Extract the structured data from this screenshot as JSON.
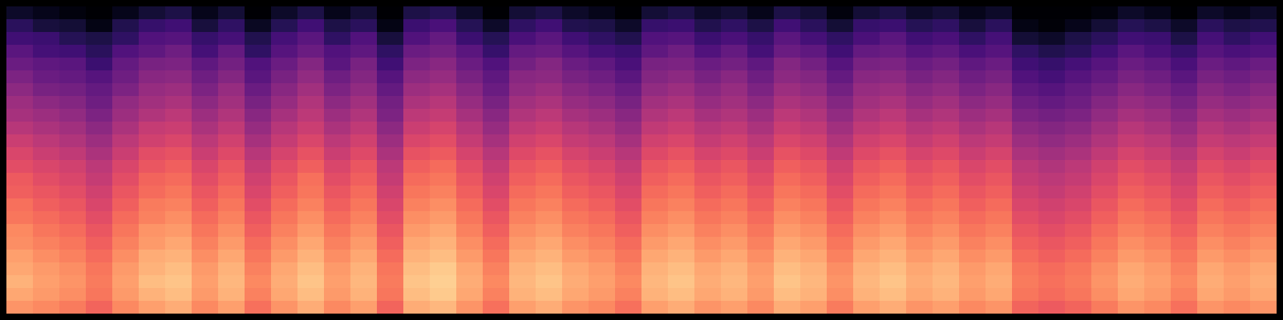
{
  "chart_data": {
    "type": "heatmap",
    "color": "magma",
    "tick_labels": false,
    "zlim": [
      -80,
      0
    ],
    "cells": [
      [
        -74,
        -76,
        -78,
        -80,
        -76,
        -72,
        -70,
        -76,
        -72,
        -80,
        -74,
        -70,
        -76,
        -72,
        -80,
        -70,
        -68,
        -74,
        -80,
        -72,
        -70,
        -74,
        -76,
        -80,
        -72,
        -70,
        -74,
        -72,
        -76,
        -70,
        -72,
        -78,
        -72,
        -70,
        -74,
        -72,
        -76,
        -74,
        -80,
        -80,
        -80,
        -78,
        -74,
        -76,
        -80,
        -74,
        -76,
        -74
      ],
      [
        -67,
        -71,
        -72,
        -77,
        -69,
        -65,
        -63,
        -71,
        -66,
        -75,
        -68,
        -63,
        -70,
        -67,
        -77,
        -64,
        -61,
        -68,
        -74,
        -66,
        -63,
        -69,
        -70,
        -74,
        -65,
        -64,
        -69,
        -66,
        -70,
        -63,
        -67,
        -72,
        -65,
        -64,
        -68,
        -66,
        -71,
        -67,
        -77,
        -79,
        -76,
        -72,
        -68,
        -70,
        -74,
        -67,
        -70,
        -69
      ],
      [
        -63,
        -64,
        -68,
        -70,
        -66,
        -60,
        -59,
        -65,
        -62,
        -69,
        -62,
        -58,
        -66,
        -60,
        -71,
        -60,
        -56,
        -64,
        -68,
        -61,
        -58,
        -63,
        -66,
        -69,
        -60,
        -59,
        -64,
        -61,
        -65,
        -58,
        -62,
        -66,
        -61,
        -58,
        -63,
        -61,
        -66,
        -62,
        -72,
        -74,
        -70,
        -67,
        -63,
        -64,
        -70,
        -62,
        -66,
        -63
      ],
      [
        -58,
        -62,
        -63,
        -67,
        -60,
        -57,
        -54,
        -62,
        -56,
        -66,
        -59,
        -55,
        -60,
        -57,
        -66,
        -55,
        -53,
        -58,
        -65,
        -56,
        -55,
        -59,
        -62,
        -64,
        -57,
        -54,
        -60,
        -56,
        -62,
        -55,
        -57,
        -63,
        -56,
        -55,
        -59,
        -57,
        -61,
        -59,
        -66,
        -69,
        -67,
        -63,
        -58,
        -61,
        -65,
        -59,
        -61,
        -60
      ],
      [
        -55,
        -57,
        -58,
        -64,
        -56,
        -52,
        -51,
        -57,
        -53,
        -60,
        -55,
        -50,
        -58,
        -52,
        -63,
        -51,
        -49,
        -55,
        -60,
        -53,
        -50,
        -55,
        -57,
        -61,
        -52,
        -51,
        -55,
        -53,
        -57,
        -50,
        -53,
        -59,
        -52,
        -51,
        -55,
        -53,
        -57,
        -55,
        -63,
        -65,
        -62,
        -59,
        -55,
        -57,
        -61,
        -55,
        -57,
        -55
      ],
      [
        -51,
        -55,
        -56,
        -59,
        -54,
        -49,
        -48,
        -54,
        -50,
        -58,
        -52,
        -47,
        -54,
        -50,
        -59,
        -48,
        -46,
        -52,
        -57,
        -49,
        -48,
        -52,
        -54,
        -58,
        -50,
        -48,
        -52,
        -49,
        -54,
        -48,
        -50,
        -56,
        -49,
        -48,
        -52,
        -50,
        -54,
        -52,
        -60,
        -62,
        -59,
        -56,
        -52,
        -54,
        -58,
        -52,
        -54,
        -52
      ],
      [
        -48,
        -52,
        -53,
        -56,
        -51,
        -46,
        -45,
        -51,
        -46,
        -55,
        -49,
        -44,
        -51,
        -47,
        -56,
        -45,
        -43,
        -49,
        -55,
        -47,
        -45,
        -49,
        -51,
        -55,
        -47,
        -45,
        -49,
        -46,
        -51,
        -45,
        -47,
        -53,
        -46,
        -45,
        -49,
        -47,
        -51,
        -49,
        -57,
        -59,
        -56,
        -53,
        -49,
        -51,
        -55,
        -49,
        -51,
        -49
      ],
      [
        -45,
        -48,
        -50,
        -54,
        -47,
        -44,
        -42,
        -48,
        -44,
        -52,
        -46,
        -41,
        -48,
        -44,
        -53,
        -42,
        -40,
        -46,
        -52,
        -44,
        -42,
        -46,
        -48,
        -52,
        -44,
        -42,
        -46,
        -44,
        -48,
        -42,
        -44,
        -50,
        -44,
        -42,
        -46,
        -44,
        -48,
        -46,
        -54,
        -56,
        -54,
        -50,
        -46,
        -48,
        -52,
        -46,
        -48,
        -46
      ],
      [
        -43,
        -45,
        -47,
        -51,
        -45,
        -41,
        -39,
        -45,
        -41,
        -49,
        -43,
        -39,
        -45,
        -41,
        -51,
        -39,
        -37,
        -43,
        -49,
        -41,
        -39,
        -43,
        -45,
        -49,
        -41,
        -39,
        -43,
        -41,
        -45,
        -39,
        -41,
        -47,
        -41,
        -39,
        -43,
        -41,
        -45,
        -43,
        -51,
        -53,
        -51,
        -47,
        -43,
        -45,
        -49,
        -43,
        -45,
        -43
      ],
      [
        -40,
        -42,
        -44,
        -48,
        -42,
        -37,
        -36,
        -42,
        -38,
        -46,
        -40,
        -36,
        -42,
        -38,
        -48,
        -36,
        -34,
        -40,
        -46,
        -38,
        -36,
        -40,
        -42,
        -46,
        -38,
        -36,
        -40,
        -38,
        -42,
        -36,
        -38,
        -44,
        -38,
        -36,
        -40,
        -38,
        -42,
        -40,
        -48,
        -50,
        -48,
        -44,
        -40,
        -42,
        -46,
        -40,
        -42,
        -40
      ],
      [
        -36,
        -39,
        -41,
        -45,
        -39,
        -35,
        -33,
        -39,
        -35,
        -43,
        -37,
        -33,
        -39,
        -35,
        -45,
        -33,
        -31,
        -37,
        -43,
        -35,
        -33,
        -37,
        -39,
        -43,
        -35,
        -33,
        -37,
        -35,
        -39,
        -33,
        -35,
        -41,
        -35,
        -33,
        -37,
        -35,
        -39,
        -37,
        -45,
        -47,
        -45,
        -41,
        -37,
        -39,
        -43,
        -37,
        -39,
        -37
      ],
      [
        -33,
        -36,
        -38,
        -42,
        -36,
        -31,
        -30,
        -36,
        -32,
        -40,
        -34,
        -30,
        -36,
        -32,
        -42,
        -30,
        -28,
        -34,
        -40,
        -32,
        -30,
        -34,
        -36,
        -40,
        -32,
        -30,
        -34,
        -32,
        -36,
        -30,
        -32,
        -38,
        -32,
        -30,
        -34,
        -32,
        -36,
        -34,
        -42,
        -44,
        -42,
        -38,
        -34,
        -36,
        -40,
        -34,
        -36,
        -34
      ],
      [
        -31,
        -33,
        -35,
        -39,
        -33,
        -29,
        -27,
        -33,
        -29,
        -37,
        -31,
        -27,
        -33,
        -29,
        -39,
        -27,
        -25,
        -31,
        -37,
        -29,
        -27,
        -31,
        -33,
        -37,
        -29,
        -27,
        -31,
        -29,
        -33,
        -27,
        -29,
        -35,
        -29,
        -27,
        -31,
        -29,
        -33,
        -31,
        -39,
        -41,
        -39,
        -35,
        -31,
        -33,
        -37,
        -31,
        -33,
        -31
      ],
      [
        -28,
        -31,
        -33,
        -37,
        -31,
        -26,
        -25,
        -31,
        -27,
        -35,
        -29,
        -24,
        -31,
        -27,
        -37,
        -25,
        -23,
        -29,
        -35,
        -27,
        -25,
        -29,
        -31,
        -35,
        -27,
        -25,
        -29,
        -27,
        -31,
        -25,
        -27,
        -33,
        -27,
        -25,
        -29,
        -27,
        -31,
        -29,
        -37,
        -39,
        -37,
        -33,
        -29,
        -31,
        -35,
        -29,
        -31,
        -29
      ],
      [
        -27,
        -29,
        -31,
        -35,
        -29,
        -25,
        -23,
        -29,
        -25,
        -33,
        -27,
        -23,
        -29,
        -25,
        -35,
        -23,
        -21,
        -27,
        -33,
        -25,
        -23,
        -27,
        -29,
        -33,
        -25,
        -23,
        -27,
        -25,
        -29,
        -23,
        -25,
        -31,
        -25,
        -23,
        -27,
        -25,
        -29,
        -27,
        -35,
        -37,
        -35,
        -31,
        -27,
        -29,
        -33,
        -27,
        -29,
        -27
      ],
      [
        -24,
        -27,
        -29,
        -33,
        -27,
        -22,
        -21,
        -27,
        -23,
        -31,
        -25,
        -21,
        -27,
        -23,
        -33,
        -21,
        -19,
        -25,
        -31,
        -23,
        -21,
        -25,
        -27,
        -31,
        -23,
        -21,
        -25,
        -23,
        -27,
        -21,
        -23,
        -29,
        -23,
        -21,
        -25,
        -23,
        -27,
        -25,
        -33,
        -35,
        -33,
        -29,
        -25,
        -27,
        -31,
        -25,
        -27,
        -25
      ],
      [
        -23,
        -25,
        -27,
        -31,
        -25,
        -21,
        -19,
        -25,
        -21,
        -29,
        -23,
        -19,
        -25,
        -21,
        -31,
        -19,
        -17,
        -23,
        -29,
        -21,
        -19,
        -23,
        -25,
        -29,
        -21,
        -19,
        -23,
        -21,
        -25,
        -19,
        -21,
        -27,
        -21,
        -19,
        -23,
        -21,
        -25,
        -23,
        -31,
        -33,
        -31,
        -27,
        -23,
        -25,
        -29,
        -23,
        -25,
        -23
      ],
      [
        -20,
        -23,
        -25,
        -29,
        -23,
        -18,
        -17,
        -23,
        -19,
        -27,
        -21,
        -17,
        -23,
        -19,
        -29,
        -17,
        -15,
        -21,
        -27,
        -19,
        -17,
        -21,
        -23,
        -27,
        -19,
        -17,
        -21,
        -19,
        -23,
        -17,
        -19,
        -25,
        -19,
        -17,
        -21,
        -19,
        -23,
        -21,
        -29,
        -31,
        -29,
        -25,
        -21,
        -23,
        -27,
        -21,
        -23,
        -21
      ],
      [
        -19,
        -21,
        -23,
        -27,
        -21,
        -17,
        -15,
        -21,
        -17,
        -25,
        -19,
        -15,
        -21,
        -17,
        -27,
        -15,
        -13,
        -19,
        -25,
        -17,
        -15,
        -19,
        -21,
        -25,
        -17,
        -15,
        -19,
        -17,
        -21,
        -15,
        -17,
        -23,
        -17,
        -15,
        -19,
        -17,
        -21,
        -19,
        -27,
        -29,
        -27,
        -23,
        -19,
        -21,
        -25,
        -19,
        -21,
        -19
      ],
      [
        -16,
        -19,
        -21,
        -25,
        -19,
        -14,
        -13,
        -19,
        -15,
        -23,
        -17,
        -13,
        -19,
        -15,
        -25,
        -13,
        -11,
        -17,
        -23,
        -15,
        -13,
        -17,
        -19,
        -23,
        -15,
        -13,
        -17,
        -15,
        -19,
        -13,
        -15,
        -21,
        -15,
        -13,
        -17,
        -15,
        -19,
        -17,
        -25,
        -27,
        -25,
        -21,
        -17,
        -19,
        -23,
        -17,
        -19,
        -17
      ],
      [
        -15,
        -17,
        -19,
        -23,
        -17,
        -13,
        -11,
        -17,
        -13,
        -21,
        -15,
        -11,
        -17,
        -13,
        -23,
        -11,
        -9,
        -15,
        -21,
        -13,
        -11,
        -15,
        -17,
        -21,
        -13,
        -11,
        -15,
        -13,
        -17,
        -11,
        -13,
        -19,
        -13,
        -11,
        -15,
        -13,
        -17,
        -15,
        -23,
        -25,
        -23,
        -19,
        -15,
        -17,
        -21,
        -15,
        -17,
        -15
      ],
      [
        -13,
        -16,
        -18,
        -22,
        -16,
        -11,
        -10,
        -16,
        -12,
        -20,
        -14,
        -10,
        -16,
        -12,
        -22,
        -10,
        -8,
        -14,
        -20,
        -12,
        -10,
        -14,
        -16,
        -20,
        -12,
        -10,
        -14,
        -12,
        -16,
        -10,
        -12,
        -18,
        -12,
        -10,
        -14,
        -12,
        -16,
        -14,
        -22,
        -24,
        -22,
        -18,
        -14,
        -16,
        -20,
        -14,
        -16,
        -14
      ],
      [
        -15,
        -17,
        -19,
        -23,
        -17,
        -13,
        -11,
        -17,
        -13,
        -21,
        -15,
        -11,
        -17,
        -13,
        -23,
        -11,
        -9,
        -15,
        -21,
        -13,
        -11,
        -15,
        -17,
        -21,
        -13,
        -11,
        -15,
        -13,
        -17,
        -11,
        -13,
        -19,
        -13,
        -11,
        -15,
        -13,
        -17,
        -15,
        -23,
        -25,
        -23,
        -19,
        -15,
        -17,
        -21,
        -15,
        -17,
        -15
      ],
      [
        -18,
        -20,
        -22,
        -26,
        -20,
        -16,
        -14,
        -20,
        -16,
        -24,
        -18,
        -14,
        -20,
        -16,
        -26,
        -14,
        -12,
        -18,
        -24,
        -16,
        -14,
        -18,
        -20,
        -24,
        -16,
        -14,
        -18,
        -16,
        -20,
        -14,
        -16,
        -22,
        -16,
        -14,
        -18,
        -16,
        -20,
        -18,
        -26,
        -28,
        -26,
        -22,
        -18,
        -20,
        -24,
        -18,
        -20,
        -18
      ]
    ]
  }
}
